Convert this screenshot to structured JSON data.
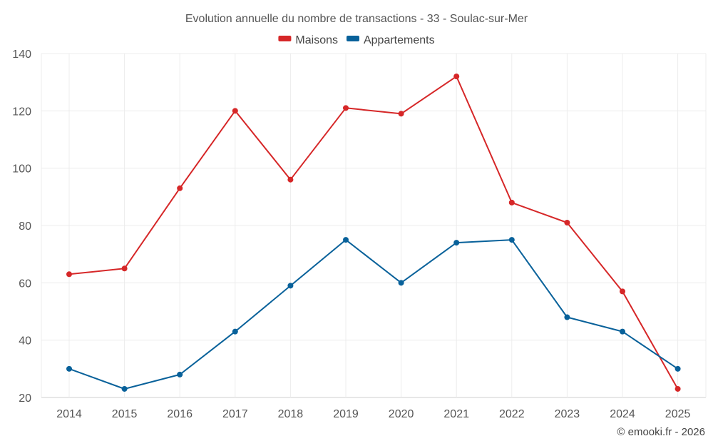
{
  "chart_data": {
    "type": "line",
    "title": "Evolution annuelle du nombre de transactions - 33 - Soulac-sur-Mer",
    "categories": [
      "2014",
      "2015",
      "2016",
      "2017",
      "2018",
      "2019",
      "2020",
      "2021",
      "2022",
      "2023",
      "2024",
      "2025"
    ],
    "series": [
      {
        "name": "Maisons",
        "color": "#d62728",
        "values": [
          63,
          65,
          93,
          120,
          96,
          121,
          119,
          132,
          88,
          81,
          57,
          23
        ]
      },
      {
        "name": "Appartements",
        "color": "#08619a",
        "values": [
          30,
          23,
          28,
          43,
          59,
          75,
          60,
          74,
          75,
          48,
          43,
          30
        ]
      }
    ],
    "ylim": [
      20,
      140
    ],
    "yticks": [
      20,
      40,
      60,
      80,
      100,
      120,
      140
    ],
    "xlabel": "",
    "ylabel": "",
    "grid": true,
    "legend_position": "top-center"
  },
  "credit": "© emooki.fr - 2026"
}
